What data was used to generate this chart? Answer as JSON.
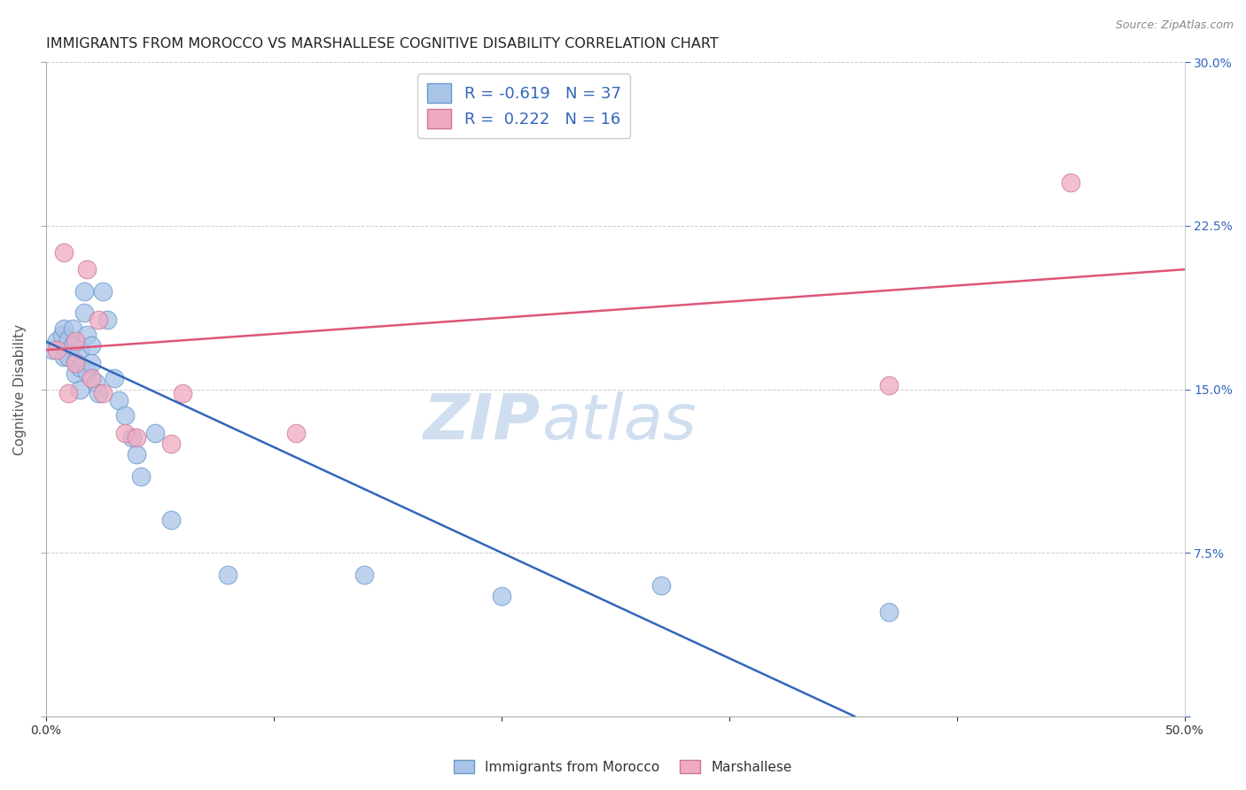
{
  "title": "IMMIGRANTS FROM MOROCCO VS MARSHALLESE COGNITIVE DISABILITY CORRELATION CHART",
  "source": "Source: ZipAtlas.com",
  "ylabel": "Cognitive Disability",
  "xmin": 0.0,
  "xmax": 0.5,
  "ymin": 0.0,
  "ymax": 0.3,
  "xticks": [
    0.0,
    0.1,
    0.2,
    0.3,
    0.4,
    0.5
  ],
  "yticks": [
    0.0,
    0.075,
    0.15,
    0.225,
    0.3
  ],
  "ytick_labels_right": [
    "",
    "7.5%",
    "15.0%",
    "22.5%",
    "30.0%"
  ],
  "xtick_labels": [
    "0.0%",
    "",
    "",
    "",
    "",
    "50.0%"
  ],
  "blue_R": -0.619,
  "blue_N": 37,
  "pink_R": 0.222,
  "pink_N": 16,
  "blue_scatter_x": [
    0.003,
    0.005,
    0.007,
    0.008,
    0.008,
    0.01,
    0.01,
    0.012,
    0.012,
    0.013,
    0.013,
    0.015,
    0.015,
    0.015,
    0.017,
    0.017,
    0.018,
    0.018,
    0.02,
    0.02,
    0.022,
    0.023,
    0.025,
    0.027,
    0.03,
    0.032,
    0.035,
    0.038,
    0.04,
    0.042,
    0.048,
    0.055,
    0.08,
    0.14,
    0.2,
    0.27,
    0.37
  ],
  "blue_scatter_y": [
    0.168,
    0.172,
    0.175,
    0.178,
    0.165,
    0.173,
    0.165,
    0.178,
    0.17,
    0.163,
    0.157,
    0.168,
    0.16,
    0.15,
    0.195,
    0.185,
    0.175,
    0.158,
    0.17,
    0.162,
    0.153,
    0.148,
    0.195,
    0.182,
    0.155,
    0.145,
    0.138,
    0.128,
    0.12,
    0.11,
    0.13,
    0.09,
    0.065,
    0.065,
    0.055,
    0.06,
    0.048
  ],
  "pink_scatter_x": [
    0.005,
    0.008,
    0.01,
    0.013,
    0.013,
    0.018,
    0.02,
    0.023,
    0.025,
    0.035,
    0.04,
    0.055,
    0.06,
    0.11,
    0.37,
    0.45
  ],
  "pink_scatter_y": [
    0.168,
    0.213,
    0.148,
    0.172,
    0.162,
    0.205,
    0.155,
    0.182,
    0.148,
    0.13,
    0.128,
    0.125,
    0.148,
    0.13,
    0.152,
    0.245
  ],
  "blue_line_x": [
    0.0,
    0.355
  ],
  "blue_line_y": [
    0.172,
    0.0
  ],
  "pink_line_x": [
    0.0,
    0.5
  ],
  "pink_line_y": [
    0.168,
    0.205
  ],
  "blue_line_color": "#3366bb",
  "pink_line_color": "#dd5577",
  "scatter_blue_color": "#aac4e8",
  "scatter_pink_color": "#f0aac0",
  "scatter_edge_blue": "#6699cc",
  "scatter_edge_pink": "#cc7799",
  "background_color": "#ffffff",
  "grid_color": "#cccccc",
  "title_fontsize": 11.5,
  "axis_label_fontsize": 11,
  "tick_fontsize": 10,
  "watermark_text": "ZIP",
  "watermark_text2": "atlas",
  "watermark_color": "#d0dff0",
  "source_color": "#888888"
}
